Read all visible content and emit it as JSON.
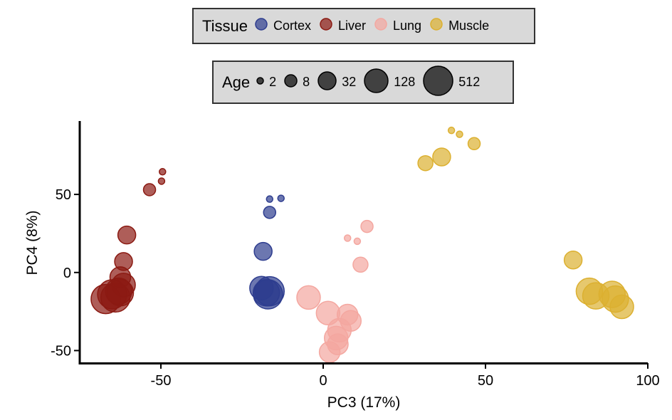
{
  "legends": {
    "tissue": {
      "title": "Tissue",
      "items": [
        {
          "label": "Cortex",
          "color": "#2e3d8f"
        },
        {
          "label": "Liver",
          "color": "#8b1a12"
        },
        {
          "label": "Lung",
          "color": "#f4a7a0"
        },
        {
          "label": "Muscle",
          "color": "#dcb030"
        }
      ]
    },
    "age": {
      "title": "Age",
      "items": [
        {
          "label": "2",
          "value": 2
        },
        {
          "label": "8",
          "value": 8
        },
        {
          "label": "32",
          "value": 32
        },
        {
          "label": "128",
          "value": 128
        },
        {
          "label": "512",
          "value": 512
        }
      ]
    }
  },
  "chart_data": {
    "type": "scatter",
    "xlabel": "PC3 (17%)",
    "ylabel": "PC4 (8%)",
    "xlim": [
      -75,
      100
    ],
    "ylim": [
      -58,
      97
    ],
    "xticks": [
      -50,
      0,
      50,
      100
    ],
    "yticks": [
      -50,
      0,
      50
    ],
    "grid": false,
    "legend_position": "top",
    "series": [
      {
        "name": "Liver",
        "color": "#8b1a12",
        "points": [
          {
            "x": -49.5,
            "y": 64.5,
            "age": 2
          },
          {
            "x": -49.8,
            "y": 58.5,
            "age": 2
          },
          {
            "x": -53.5,
            "y": 53,
            "age": 8
          },
          {
            "x": -60.5,
            "y": 24,
            "age": 32
          },
          {
            "x": -61.5,
            "y": 7,
            "age": 32
          },
          {
            "x": -62.5,
            "y": -3,
            "age": 64
          },
          {
            "x": -61.5,
            "y": -8,
            "age": 128
          },
          {
            "x": -63,
            "y": -12,
            "age": 256
          },
          {
            "x": -65,
            "y": -14,
            "age": 512
          },
          {
            "x": -67,
            "y": -17,
            "age": 512
          },
          {
            "x": -64,
            "y": -16,
            "age": 512
          },
          {
            "x": -62.5,
            "y": -13,
            "age": 256
          }
        ]
      },
      {
        "name": "Cortex",
        "color": "#2e3d8f",
        "points": [
          {
            "x": -16.5,
            "y": 47,
            "age": 2
          },
          {
            "x": -13,
            "y": 47.5,
            "age": 2
          },
          {
            "x": -16.5,
            "y": 38.5,
            "age": 8
          },
          {
            "x": -18.5,
            "y": 13.5,
            "age": 32
          },
          {
            "x": -19,
            "y": -10,
            "age": 128
          },
          {
            "x": -17,
            "y": -14,
            "age": 512
          },
          {
            "x": -16.5,
            "y": -12,
            "age": 512
          },
          {
            "x": -17.5,
            "y": -13,
            "age": 256
          }
        ]
      },
      {
        "name": "Lung",
        "color": "#f4a7a0",
        "points": [
          {
            "x": 7.5,
            "y": 22,
            "age": 2
          },
          {
            "x": 10.5,
            "y": 20,
            "age": 2
          },
          {
            "x": 13.5,
            "y": 29.5,
            "age": 8
          },
          {
            "x": 11.5,
            "y": 5,
            "age": 16
          },
          {
            "x": -4.5,
            "y": -16,
            "age": 128
          },
          {
            "x": 1.5,
            "y": -26,
            "age": 128
          },
          {
            "x": 7.5,
            "y": -27,
            "age": 64
          },
          {
            "x": 8.5,
            "y": -31,
            "age": 64
          },
          {
            "x": 5,
            "y": -37,
            "age": 128
          },
          {
            "x": 4,
            "y": -42,
            "age": 128
          },
          {
            "x": 4.5,
            "y": -46,
            "age": 64
          },
          {
            "x": 2,
            "y": -51,
            "age": 64
          }
        ]
      },
      {
        "name": "Muscle",
        "color": "#dcb030",
        "points": [
          {
            "x": 39.5,
            "y": 91,
            "age": 2
          },
          {
            "x": 42,
            "y": 88.5,
            "age": 2
          },
          {
            "x": 46.5,
            "y": 82.5,
            "age": 8
          },
          {
            "x": 31.5,
            "y": 70,
            "age": 16
          },
          {
            "x": 36.5,
            "y": 74,
            "age": 32
          },
          {
            "x": 77,
            "y": 8,
            "age": 32
          },
          {
            "x": 82,
            "y": -12,
            "age": 256
          },
          {
            "x": 84,
            "y": -15,
            "age": 256
          },
          {
            "x": 89,
            "y": -14,
            "age": 256
          },
          {
            "x": 90,
            "y": -17,
            "age": 256
          },
          {
            "x": 92,
            "y": -22,
            "age": 128
          }
        ]
      }
    ]
  }
}
